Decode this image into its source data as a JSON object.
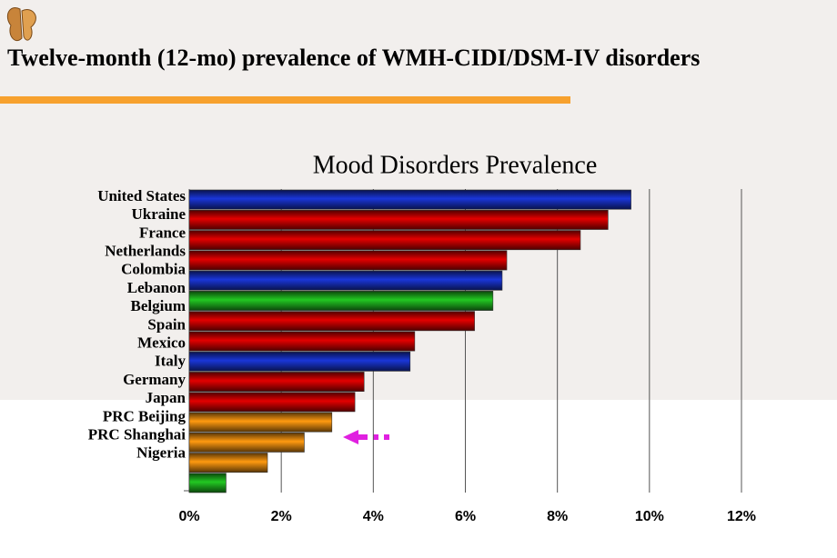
{
  "header": {
    "title": "Twelve-month (12-mo) prevalence of WMH-CIDI/DSM-IV disorders"
  },
  "chart_data": {
    "type": "hbar",
    "title": "Mood Disorders Prevalence",
    "categories": [
      "United States",
      "Ukraine",
      "France",
      "Netherlands",
      "Colombia",
      "Lebanon",
      "Belgium",
      "Spain",
      "Mexico",
      "Italy",
      "Germany",
      "Japan",
      "PRC Beijing",
      "PRC Shanghai",
      "Nigeria"
    ],
    "values": [
      9.6,
      9.1,
      8.5,
      6.9,
      6.8,
      6.6,
      6.2,
      4.9,
      4.8,
      3.8,
      3.6,
      3.1,
      2.5,
      1.7,
      0.8
    ],
    "colors": [
      "#1a36d8",
      "#e30000",
      "#e30000",
      "#e30000",
      "#1a36d8",
      "#22c822",
      "#e30000",
      "#e30000",
      "#1a36d8",
      "#e30000",
      "#e30000",
      "#ff9a10",
      "#ff9a10",
      "#ff9a10",
      "#22c822"
    ],
    "xlim": [
      0,
      12
    ],
    "xticks": [
      {
        "value": 0,
        "label": "0%"
      },
      {
        "value": 2,
        "label": "2%"
      },
      {
        "value": 4,
        "label": "4%"
      },
      {
        "value": 6,
        "label": "6%"
      },
      {
        "value": 8,
        "label": "8%"
      },
      {
        "value": 10,
        "label": "10%"
      },
      {
        "value": 12,
        "label": "12%"
      }
    ],
    "grid": true
  }
}
